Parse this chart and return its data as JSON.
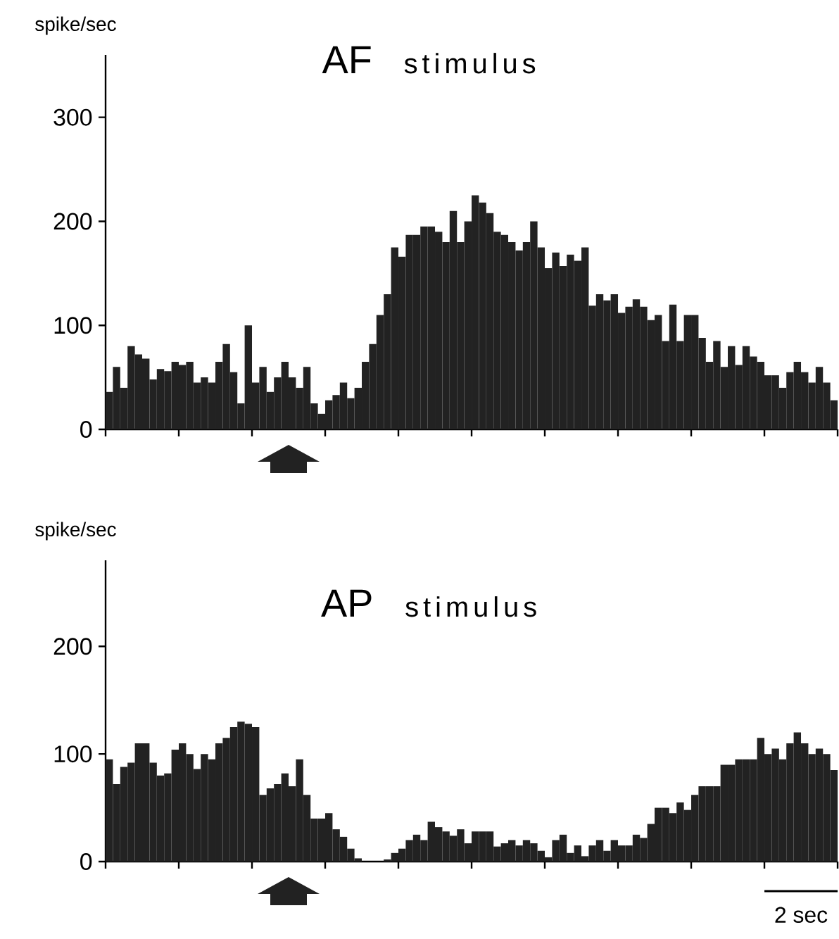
{
  "chart_data": [
    {
      "type": "bar",
      "title": "AF",
      "subtitle": "stimulus",
      "ylabel": "spike/sec",
      "color": "#222222",
      "categories": [
        null,
        null,
        null,
        null,
        null,
        null,
        null,
        null,
        null,
        null,
        null,
        null,
        null,
        null,
        null,
        null,
        null,
        null,
        null,
        null,
        null,
        null,
        null,
        null,
        null,
        null,
        null,
        null,
        null,
        null,
        null,
        null,
        null,
        null,
        null,
        null,
        null,
        null,
        null,
        null,
        null,
        null,
        null,
        null,
        null,
        null,
        null,
        null,
        null,
        null,
        null,
        null,
        null,
        null,
        null,
        null,
        null,
        null,
        null,
        null,
        null,
        null,
        null,
        null,
        null,
        null,
        null,
        null,
        null,
        null,
        null,
        null,
        null,
        null,
        null,
        null,
        null,
        null,
        null,
        null,
        null,
        null,
        null,
        null,
        null,
        null,
        null,
        null,
        null,
        null,
        null,
        null,
        null,
        null,
        null,
        null,
        null,
        null,
        null,
        null
      ],
      "values": [
        36,
        60,
        40,
        80,
        72,
        68,
        48,
        58,
        56,
        65,
        62,
        65,
        45,
        50,
        45,
        65,
        82,
        55,
        25,
        100,
        45,
        60,
        36,
        50,
        65,
        50,
        40,
        60,
        25,
        15,
        28,
        33,
        45,
        30,
        40,
        65,
        82,
        110,
        130,
        175,
        166,
        187,
        187,
        195,
        195,
        190,
        180,
        210,
        180,
        200,
        225,
        218,
        208,
        190,
        187,
        180,
        172,
        180,
        200,
        175,
        155,
        170,
        157,
        168,
        162,
        175,
        119,
        130,
        124,
        130,
        112,
        118,
        125,
        118,
        105,
        110,
        85,
        120,
        85,
        110,
        110,
        88,
        65,
        85,
        60,
        80,
        62,
        80,
        70,
        65,
        52,
        52,
        40,
        55,
        65,
        55,
        45,
        60,
        45,
        28
      ],
      "ylim": [
        0,
        360
      ],
      "yticks": [
        0,
        100,
        200,
        300
      ]
    },
    {
      "type": "bar",
      "title": "AP",
      "subtitle": "stimulus",
      "ylabel": "spike/sec",
      "color": "#222222",
      "categories": [
        null,
        null,
        null,
        null,
        null,
        null,
        null,
        null,
        null,
        null,
        null,
        null,
        null,
        null,
        null,
        null,
        null,
        null,
        null,
        null,
        null,
        null,
        null,
        null,
        null,
        null,
        null,
        null,
        null,
        null,
        null,
        null,
        null,
        null,
        null,
        null,
        null,
        null,
        null,
        null,
        null,
        null,
        null,
        null,
        null,
        null,
        null,
        null,
        null,
        null,
        null,
        null,
        null,
        null,
        null,
        null,
        null,
        null,
        null,
        null,
        null,
        null,
        null,
        null,
        null,
        null,
        null,
        null,
        null,
        null,
        null,
        null,
        null,
        null,
        null,
        null,
        null,
        null,
        null,
        null,
        null,
        null,
        null,
        null,
        null,
        null,
        null,
        null,
        null,
        null,
        null,
        null,
        null,
        null,
        null,
        null,
        null,
        null,
        null,
        null
      ],
      "values": [
        95,
        72,
        88,
        92,
        110,
        110,
        92,
        80,
        82,
        104,
        110,
        100,
        86,
        100,
        95,
        110,
        115,
        125,
        130,
        128,
        125,
        62,
        68,
        72,
        82,
        70,
        95,
        62,
        40,
        40,
        45,
        30,
        23,
        12,
        3,
        0,
        0,
        0,
        2,
        8,
        12,
        20,
        25,
        20,
        37,
        32,
        28,
        24,
        30,
        17,
        28,
        28,
        28,
        14,
        17,
        20,
        15,
        20,
        17,
        10,
        4,
        20,
        25,
        8,
        15,
        5,
        15,
        20,
        10,
        20,
        15,
        15,
        25,
        22,
        35,
        50,
        50,
        45,
        55,
        48,
        62,
        70,
        70,
        70,
        90,
        90,
        95,
        95,
        95,
        115,
        100,
        105,
        95,
        110,
        120,
        110,
        100,
        105,
        100,
        85
      ],
      "ylim": [
        0,
        280
      ],
      "yticks": [
        0,
        100,
        200
      ],
      "annotations": [
        "2 sec"
      ]
    }
  ]
}
